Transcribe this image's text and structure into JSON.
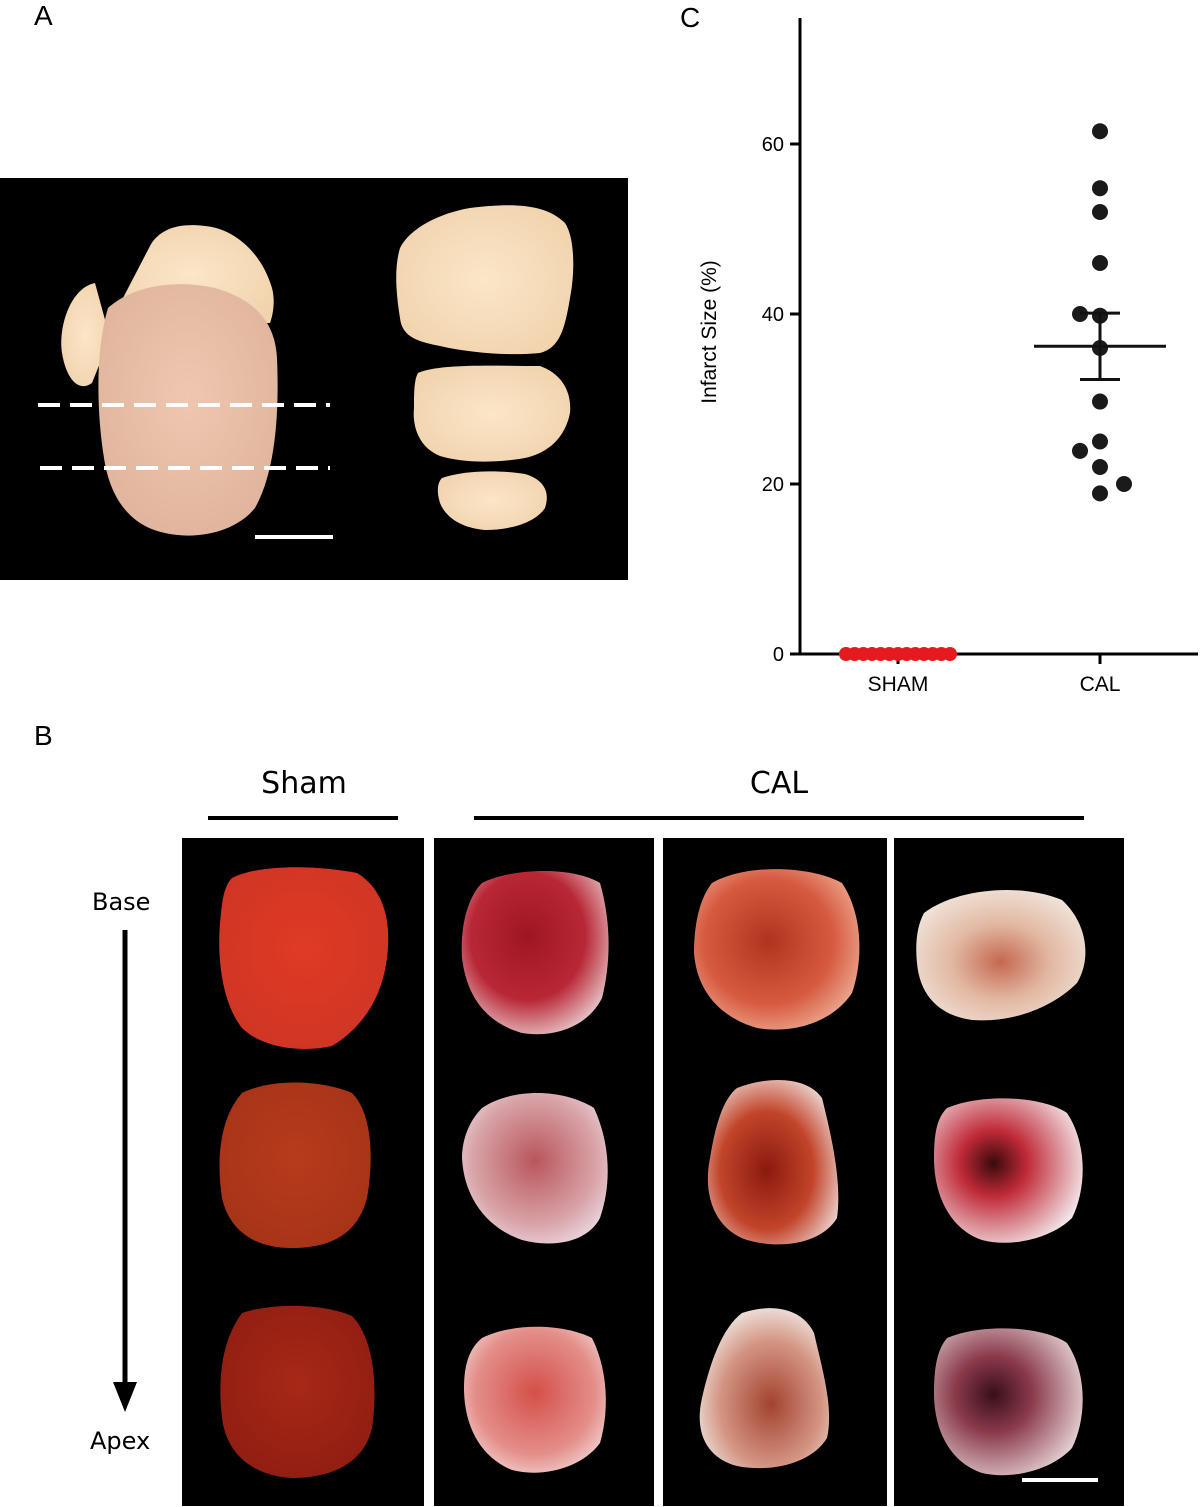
{
  "panels": {
    "a_letter": "A",
    "b_letter": "B",
    "c_letter": "C"
  },
  "panel_b": {
    "sham_label": "Sham",
    "cal_label": "CAL",
    "base_label": "Base",
    "apex_label": "Apex"
  },
  "chart_data": {
    "type": "scatter",
    "ylabel": "Infarct Size (%)",
    "xlabel": "",
    "categories": [
      "SHAM",
      "CAL"
    ],
    "ylim": [
      0,
      75
    ],
    "yticks": [
      0,
      20,
      40,
      60
    ],
    "grid": false,
    "series": [
      {
        "category": "SHAM",
        "color": "#e8191e",
        "values": [
          0,
          0,
          0,
          0,
          0,
          0,
          0,
          0,
          0,
          0,
          0,
          0,
          0
        ]
      },
      {
        "category": "CAL",
        "color": "#1a1a1a",
        "values": [
          61.5,
          54.8,
          52.0,
          46.0,
          40.0,
          39.8,
          36.0,
          29.7,
          25.0,
          23.9,
          22.0,
          20.0,
          18.9
        ],
        "mean": 36.2,
        "sem_low": 32.3,
        "sem_high": 40.1
      }
    ]
  },
  "colors": {
    "sham_dot": "#e8191e",
    "cal_dot": "#1a1a1a",
    "panel_bg": "#000000"
  }
}
